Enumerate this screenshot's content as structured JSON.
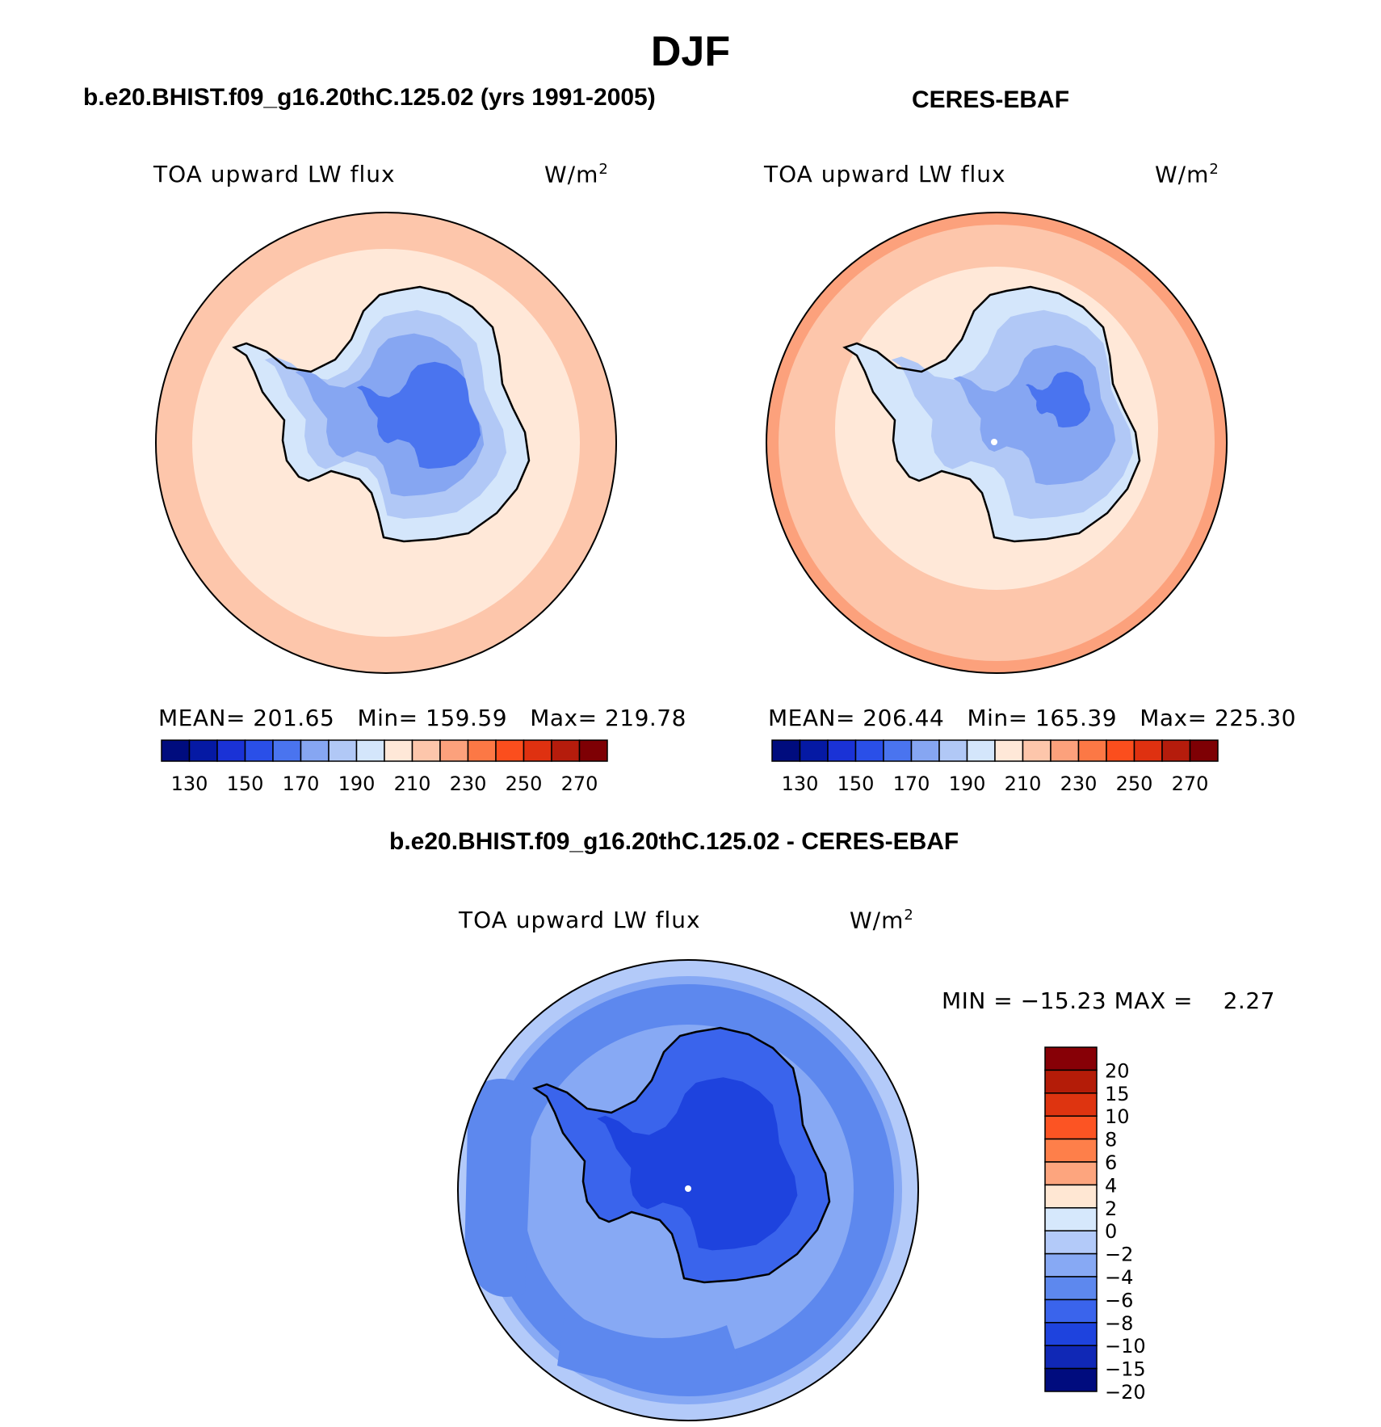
{
  "page": {
    "season": "DJF",
    "model_title": "b.e20.BHIST.f09_g16.20thC.125.02 (yrs 1991-2005)",
    "obs_title": "CERES-EBAF",
    "diff_title": "b.e20.BHIST.f09_g16.20thC.125.02 - CERES-EBAF"
  },
  "panels": {
    "model": {
      "variable": "TOA upward LW flux",
      "units_base": "W/m",
      "units_exp": "2",
      "stats": "MEAN= 201.65   Min= 159.59   Max= 219.78",
      "mean": 201.65,
      "min": 159.59,
      "max": 219.78
    },
    "obs": {
      "variable": "TOA upward LW flux",
      "units_base": "W/m",
      "units_exp": "2",
      "stats": "MEAN= 206.44   Min= 165.39   Max= 225.30",
      "mean": 206.44,
      "min": 165.39,
      "max": 225.3
    },
    "diff": {
      "variable": "TOA upward LW flux",
      "units_base": "W/m",
      "units_exp": "2",
      "stats": "MIN = −15.23 MAX =    2.27",
      "min": -15.23,
      "max": 2.27
    }
  },
  "colorbar_abs": {
    "colors": [
      "#000c7e",
      "#0519a4",
      "#1a32d6",
      "#2a4fe8",
      "#4a74ef",
      "#86a6f2",
      "#b1c8f6",
      "#d4e6fb",
      "#ffe8d8",
      "#fdc6ab",
      "#fca17c",
      "#fc7845",
      "#fb4e1d",
      "#df3110",
      "#b51c0c",
      "#7e0004"
    ],
    "tick_labels": [
      "130",
      "150",
      "170",
      "190",
      "210",
      "230",
      "250",
      "270"
    ]
  },
  "colorbar_diff": {
    "colors_top_to_bottom": [
      "#870006",
      "#b41c08",
      "#de3410",
      "#fc5423",
      "#fe7f4a",
      "#fda57e",
      "#ffe7d3",
      "#d6e8fc",
      "#b3caf9",
      "#87a9f4",
      "#5d88ee",
      "#3a64ec",
      "#1e43de",
      "#1028b6",
      "#000c7e"
    ],
    "levels": [
      "20",
      "15",
      "10",
      "8",
      "6",
      "4",
      "2",
      "0",
      "−2",
      "−4",
      "−6",
      "−8",
      "−10",
      "−15",
      "−20"
    ]
  }
}
